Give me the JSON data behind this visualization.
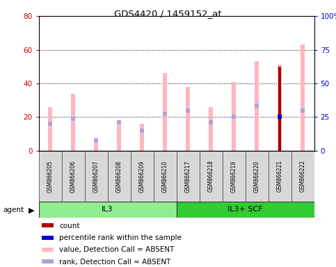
{
  "title": "GDS4420 / 1459152_at",
  "samples": [
    "GSM866205",
    "GSM866206",
    "GSM866207",
    "GSM866208",
    "GSM866209",
    "GSM866210",
    "GSM866217",
    "GSM866218",
    "GSM866219",
    "GSM866220",
    "GSM866221",
    "GSM866222"
  ],
  "groups": [
    {
      "label": "IL3",
      "start": 0,
      "end": 6,
      "color": "#90EE90"
    },
    {
      "label": "IL3+ SCF",
      "start": 6,
      "end": 12,
      "color": "#32CD32"
    }
  ],
  "value_absent": [
    26,
    34,
    6,
    17,
    16,
    46,
    38,
    26,
    41,
    53,
    51,
    63
  ],
  "rank_absent": [
    16,
    19,
    6,
    17,
    12,
    22,
    24,
    17,
    20,
    27,
    0,
    24
  ],
  "count": [
    0,
    0,
    0,
    0,
    0,
    0,
    0,
    0,
    0,
    0,
    50,
    0
  ],
  "percentile_rank": [
    0,
    0,
    0,
    0,
    0,
    0,
    0,
    0,
    0,
    0,
    25,
    0
  ],
  "ylim_left": [
    0,
    80
  ],
  "ylim_right": [
    0,
    100
  ],
  "yticks_left": [
    0,
    20,
    40,
    60,
    80
  ],
  "yticks_right": [
    0,
    25,
    50,
    75,
    100
  ],
  "ylabel_left_color": "#CC0000",
  "ylabel_right_color": "#0000CC",
  "bar_width": 0.18,
  "value_absent_color": "#FFB6C1",
  "rank_absent_color": "#B0A0D8",
  "count_color": "#AA0000",
  "percentile_color": "#0000CC",
  "agent_label": "agent",
  "bg_color": "#FFFFFF",
  "plot_bg": "#FFFFFF",
  "grid_color": "#000000",
  "legend_items": [
    {
      "color": "#AA0000",
      "label": "count"
    },
    {
      "color": "#0000CC",
      "label": "percentile rank within the sample"
    },
    {
      "color": "#FFB6C1",
      "label": "value, Detection Call = ABSENT"
    },
    {
      "color": "#B0A0D8",
      "label": "rank, Detection Call = ABSENT"
    }
  ]
}
